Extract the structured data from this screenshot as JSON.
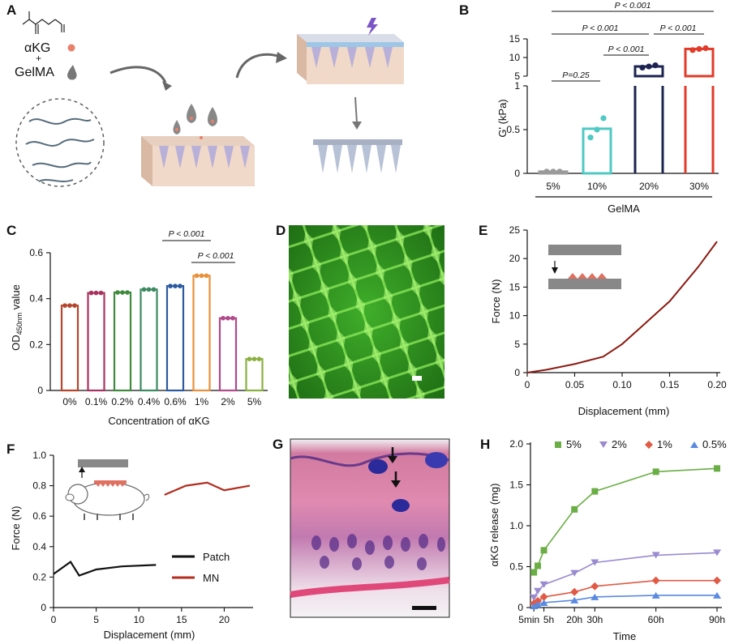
{
  "panels": {
    "A": {
      "letter": "A",
      "akg": "αKG",
      "plus": "+",
      "gelma": "GelMA"
    },
    "B": {
      "letter": "B",
      "ylabel": "G' (kPa)",
      "group_label": "GelMA",
      "sig": [
        "P < 0.001",
        "P < 0.001",
        "P < 0.001",
        "P < 0.001",
        "P=0.25"
      ]
    },
    "C": {
      "letter": "C",
      "sig": [
        "P < 0.001",
        "P < 0.001"
      ]
    },
    "D": {
      "letter": "D"
    },
    "E": {
      "letter": "E"
    },
    "F": {
      "letter": "F"
    },
    "G": {
      "letter": "G"
    },
    "H": {
      "letter": "H"
    }
  },
  "chart_data": [
    {
      "panel": "B",
      "type": "bar",
      "categories": [
        "5%",
        "10%",
        "20%",
        "30%"
      ],
      "values": [
        0.02,
        0.51,
        7.6,
        12.3
      ],
      "points": [
        [
          0.02,
          0.02,
          0.02
        ],
        [
          0.41,
          0.5,
          0.63
        ],
        [
          7.3,
          7.6,
          7.9
        ],
        [
          12.0,
          12.3,
          12.5
        ]
      ],
      "colors": [
        "#9a9a9a",
        "#4fc9c4",
        "#1c2350",
        "#e23b2a"
      ],
      "ylabel": "G' (kPa)",
      "xlabel": "GelMA",
      "yticks": [
        0,
        0.5,
        1,
        5,
        10,
        15
      ],
      "broken_axis": true
    },
    {
      "panel": "C",
      "type": "bar",
      "categories": [
        "0%",
        "0.1%",
        "0.2%",
        "0.4%",
        "0.6%",
        "1%",
        "2%",
        "5%"
      ],
      "values": [
        0.37,
        0.425,
        0.427,
        0.44,
        0.455,
        0.5,
        0.315,
        0.137
      ],
      "colors": [
        "#b4462c",
        "#a8325e",
        "#3f8a3c",
        "#3d8a62",
        "#2c5aa0",
        "#e8903a",
        "#b04a8a",
        "#8ab040"
      ],
      "xlabel": "Concentration of αKG",
      "ylabel": "OD450nm value",
      "ylim": [
        0,
        0.6
      ],
      "yticks": [
        0,
        0.2,
        0.4,
        0.6
      ]
    },
    {
      "panel": "E",
      "type": "line",
      "x": [
        0,
        0.02,
        0.05,
        0.08,
        0.1,
        0.12,
        0.15,
        0.18,
        0.2
      ],
      "y": [
        0,
        0.5,
        1.5,
        2.8,
        5.0,
        8.0,
        12.5,
        18.5,
        23
      ],
      "color": "#8b1a12",
      "xlabel": "Displacement (mm)",
      "ylabel": "Force (N)",
      "xlim": [
        0,
        0.2
      ],
      "ylim": [
        0,
        25
      ],
      "xticks": [
        "0",
        "0.05",
        "0.10",
        "0.15",
        "0.20"
      ],
      "yticks": [
        "0",
        "5",
        "10",
        "15",
        "20",
        "25"
      ]
    },
    {
      "panel": "F",
      "type": "line",
      "series": [
        {
          "name": "Patch",
          "color": "#111111",
          "x": [
            0,
            2,
            3,
            5,
            8,
            12
          ],
          "y": [
            0.22,
            0.3,
            0.21,
            0.25,
            0.27,
            0.28
          ]
        },
        {
          "name": "MN",
          "color": "#b32c1e",
          "x": [
            13,
            15.5,
            18,
            20,
            23
          ],
          "y": [
            0.74,
            0.8,
            0.82,
            0.77,
            0.8
          ]
        }
      ],
      "xlabel": "Displacement (mm)",
      "ylabel": "Force (N)",
      "xlim": [
        0,
        23
      ],
      "ylim": [
        0,
        1.0
      ],
      "xticks": [
        "0",
        "5",
        "10",
        "15",
        "20"
      ],
      "yticks": [
        "0",
        "0.2",
        "0.4",
        "0.6",
        "0.8",
        "1.0"
      ]
    },
    {
      "panel": "H",
      "type": "line",
      "categories": [
        "5min",
        "5h",
        "20h",
        "30h",
        "60h",
        "90h"
      ],
      "series": [
        {
          "name": "5%",
          "color": "#6aae45",
          "marker": "square",
          "x": [
            0.083,
            2,
            5,
            20,
            30,
            60,
            90
          ],
          "y": [
            0.43,
            0.51,
            0.7,
            1.2,
            1.42,
            1.66,
            1.7
          ]
        },
        {
          "name": "2%",
          "color": "#9a8ad0",
          "marker": "tri-down",
          "x": [
            0.083,
            2,
            5,
            20,
            30,
            60,
            90
          ],
          "y": [
            0.12,
            0.2,
            0.28,
            0.42,
            0.55,
            0.64,
            0.67
          ]
        },
        {
          "name": "1%",
          "color": "#e05a45",
          "marker": "diamond",
          "x": [
            0.083,
            2,
            5,
            20,
            30,
            60,
            90
          ],
          "y": [
            0.05,
            0.08,
            0.13,
            0.19,
            0.26,
            0.33,
            0.33
          ]
        },
        {
          "name": "0.5%",
          "color": "#5a8ae0",
          "marker": "triangle",
          "x": [
            0.083,
            2,
            5,
            20,
            30,
            60,
            90
          ],
          "y": [
            0.02,
            0.04,
            0.06,
            0.09,
            0.13,
            0.15,
            0.15
          ]
        }
      ],
      "xlabel": "Time",
      "ylabel": "αKG release (mg)",
      "ylim": [
        0,
        2.0
      ],
      "yticks": [
        "0",
        "0.5",
        "1.0",
        "1.5",
        "2.0"
      ]
    }
  ]
}
